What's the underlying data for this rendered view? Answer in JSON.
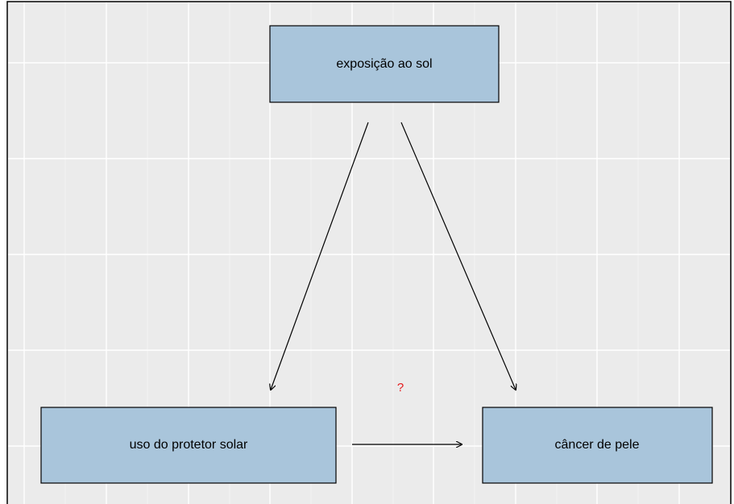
{
  "nodes": [
    {
      "label": "exposição ao sol"
    },
    {
      "label": "uso do protetor solar"
    },
    {
      "label": "câncer de pele"
    }
  ],
  "annotation": "?"
}
